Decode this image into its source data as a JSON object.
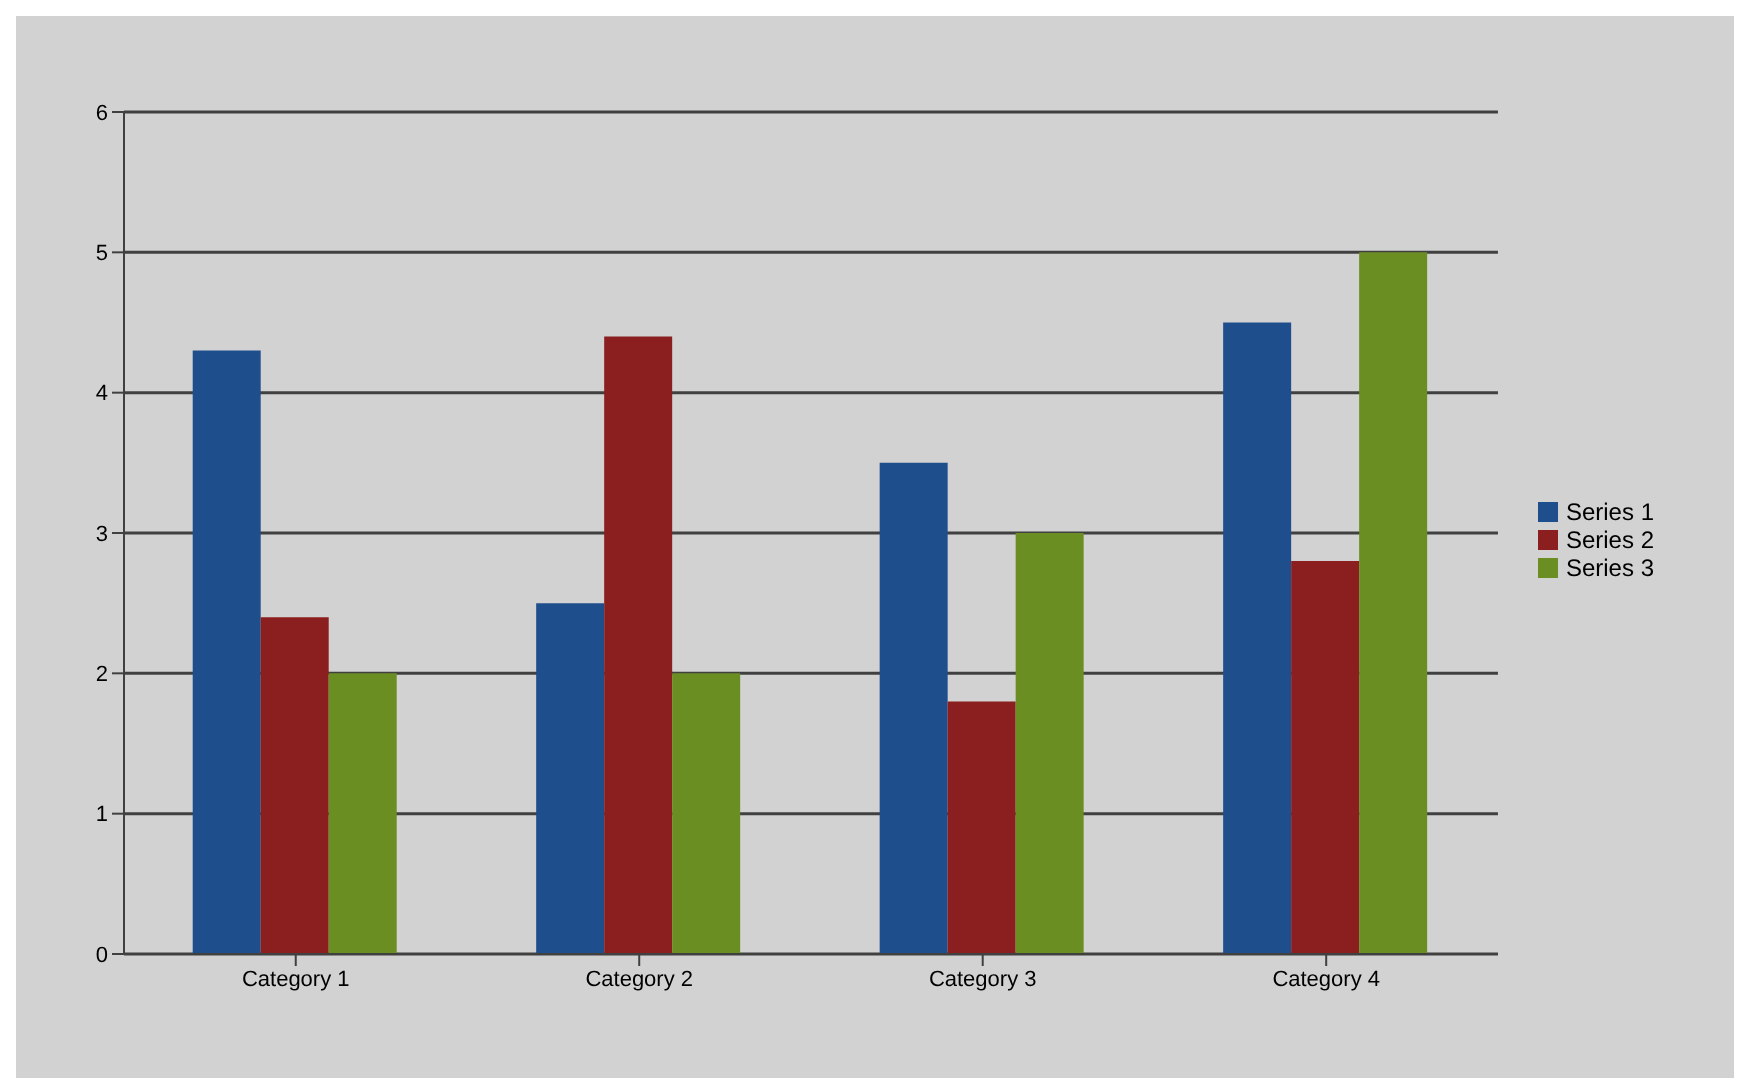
{
  "chart_data": {
    "type": "bar",
    "categories": [
      "Category 1",
      "Category 2",
      "Category 3",
      "Category 4"
    ],
    "series": [
      {
        "name": "Series 1",
        "color": "#1f4e8c",
        "values": [
          4.3,
          2.5,
          3.5,
          4.5
        ]
      },
      {
        "name": "Series 2",
        "color": "#8b1e1e",
        "values": [
          2.4,
          4.4,
          1.8,
          2.8
        ]
      },
      {
        "name": "Series 3",
        "color": "#6b8e23",
        "values": [
          2,
          2,
          3,
          5
        ]
      }
    ],
    "ylim": [
      0,
      6
    ],
    "yticks": [
      0,
      1,
      2,
      3,
      4,
      5,
      6
    ],
    "grid": "y",
    "legend": "right"
  }
}
